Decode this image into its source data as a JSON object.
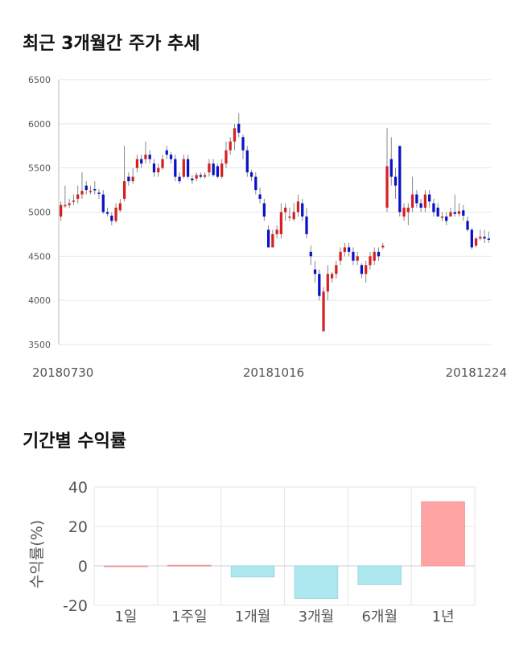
{
  "sections": {
    "price_title": "최근 3개월간 주가 추세",
    "return_title": "기간별 수익률"
  },
  "colors": {
    "up": "#d62121",
    "down": "#0a12c8",
    "grid": "#e6e6e6",
    "bar_pos": "#ffa4a4",
    "bar_neg": "#ade8f0"
  },
  "chart_data": [
    {
      "type": "candlestick",
      "title": "최근 3개월간 주가 추세",
      "ylim": [
        3500,
        6500
      ],
      "yticks": [
        3500,
        4000,
        4500,
        5000,
        5500,
        6000,
        6500
      ],
      "xtick_labels": [
        "20180730",
        "20181016",
        "20181224"
      ],
      "grid": true,
      "candles": [
        [
          4950,
          5080,
          5120,
          4900
        ],
        [
          5070,
          5080,
          5300,
          5050
        ],
        [
          5080,
          5100,
          5150,
          5050
        ],
        [
          5120,
          5130,
          5200,
          5080
        ],
        [
          5150,
          5200,
          5300,
          5100
        ],
        [
          5200,
          5240,
          5450,
          5150
        ],
        [
          5300,
          5250,
          5350,
          5200
        ],
        [
          5230,
          5240,
          5300,
          5200
        ],
        [
          5260,
          5250,
          5350,
          5200
        ],
        [
          5220,
          5210,
          5260,
          5150
        ],
        [
          5200,
          5000,
          5250,
          4980
        ],
        [
          5000,
          4980,
          5050,
          4950
        ],
        [
          4960,
          4900,
          5000,
          4850
        ],
        [
          4900,
          5050,
          5100,
          4880
        ],
        [
          5020,
          5100,
          5150,
          5000
        ],
        [
          5150,
          5350,
          5750,
          5120
        ],
        [
          5400,
          5350,
          5450,
          5300
        ],
        [
          5350,
          5400,
          5500,
          5320
        ],
        [
          5500,
          5600,
          5650,
          5450
        ],
        [
          5600,
          5550,
          5650,
          5500
        ],
        [
          5600,
          5650,
          5800,
          5550
        ],
        [
          5650,
          5600,
          5700,
          5550
        ],
        [
          5550,
          5450,
          5600,
          5400
        ],
        [
          5450,
          5500,
          5550,
          5400
        ],
        [
          5500,
          5600,
          5650,
          5480
        ],
        [
          5700,
          5650,
          5750,
          5600
        ],
        [
          5650,
          5600,
          5680,
          5550
        ],
        [
          5600,
          5400,
          5650,
          5350
        ],
        [
          5400,
          5350,
          5450,
          5320
        ],
        [
          5400,
          5600,
          5650,
          5380
        ],
        [
          5600,
          5400,
          5650,
          5380
        ],
        [
          5380,
          5360,
          5420,
          5320
        ],
        [
          5380,
          5420,
          5450,
          5350
        ],
        [
          5420,
          5400,
          5450,
          5380
        ],
        [
          5400,
          5420,
          5450,
          5380
        ],
        [
          5450,
          5550,
          5600,
          5400
        ],
        [
          5550,
          5420,
          5600,
          5400
        ],
        [
          5520,
          5400,
          5550,
          5380
        ],
        [
          5400,
          5550,
          5600,
          5380
        ],
        [
          5550,
          5700,
          5800,
          5500
        ],
        [
          5700,
          5800,
          5850,
          5650
        ],
        [
          5800,
          5950,
          6000,
          5700
        ],
        [
          6000,
          5900,
          6120,
          5850
        ],
        [
          5850,
          5700,
          5880,
          5600
        ],
        [
          5700,
          5450,
          5750,
          5400
        ],
        [
          5450,
          5400,
          5480,
          5350
        ],
        [
          5400,
          5250,
          5450,
          5200
        ],
        [
          5200,
          5150,
          5280,
          5100
        ],
        [
          5100,
          4950,
          5150,
          4900
        ],
        [
          4800,
          4600,
          4850,
          4600
        ],
        [
          4600,
          4750,
          4800,
          4600
        ],
        [
          4750,
          4800,
          4850,
          4700
        ],
        [
          4750,
          5000,
          5100,
          4700
        ],
        [
          5000,
          5050,
          5100,
          4900
        ],
        [
          4950,
          4950,
          5050,
          4900
        ],
        [
          4920,
          5000,
          5100,
          4900
        ],
        [
          5000,
          5120,
          5200,
          4950
        ],
        [
          5100,
          4950,
          5150,
          4900
        ],
        [
          4950,
          4750,
          5050,
          4700
        ],
        [
          4550,
          4500,
          4620,
          4400
        ],
        [
          4350,
          4300,
          4450,
          4200
        ],
        [
          4300,
          4050,
          4350,
          4000
        ],
        [
          3650,
          4100,
          4150,
          3650
        ],
        [
          4100,
          4300,
          4400,
          4000
        ],
        [
          4250,
          4300,
          4320,
          4200
        ],
        [
          4300,
          4400,
          4450,
          4250
        ],
        [
          4450,
          4550,
          4600,
          4400
        ],
        [
          4550,
          4600,
          4650,
          4500
        ],
        [
          4600,
          4550,
          4650,
          4500
        ],
        [
          4550,
          4450,
          4600,
          4400
        ],
        [
          4450,
          4500,
          4550,
          4400
        ],
        [
          4400,
          4300,
          4420,
          4250
        ],
        [
          4300,
          4400,
          4450,
          4200
        ],
        [
          4400,
          4500,
          4550,
          4350
        ],
        [
          4450,
          4550,
          4600,
          4400
        ],
        [
          4550,
          4500,
          4600,
          4450
        ],
        [
          4600,
          4620,
          4650,
          4580
        ],
        [
          5050,
          5520,
          5950,
          5000
        ],
        [
          5600,
          5400,
          5850,
          5300
        ],
        [
          5400,
          5300,
          5500,
          5150
        ],
        [
          5750,
          5000,
          5750,
          4950
        ],
        [
          4950,
          5050,
          5100,
          4900
        ],
        [
          5000,
          5050,
          5100,
          4850
        ],
        [
          5050,
          5200,
          5400,
          5000
        ],
        [
          5200,
          5100,
          5250,
          5050
        ],
        [
          5100,
          5050,
          5150,
          5000
        ],
        [
          5050,
          5200,
          5250,
          5000
        ],
        [
          5200,
          5120,
          5250,
          5050
        ],
        [
          5100,
          5000,
          5150,
          4950
        ],
        [
          5050,
          4950,
          5100,
          4950
        ],
        [
          4950,
          4950,
          5000,
          4900
        ],
        [
          4950,
          4900,
          5000,
          4850
        ],
        [
          4950,
          5000,
          5050,
          4950
        ],
        [
          5000,
          4980,
          5200,
          4950
        ],
        [
          4980,
          5010,
          5100,
          4950
        ],
        [
          5020,
          4960,
          5080,
          4900
        ],
        [
          4900,
          4800,
          4950,
          4780
        ],
        [
          4800,
          4600,
          4820,
          4580
        ],
        [
          4620,
          4700,
          4720,
          4600
        ],
        [
          4700,
          4720,
          4800,
          4680
        ],
        [
          4720,
          4700,
          4800,
          4650
        ],
        [
          4700,
          4690,
          4780,
          4650
        ]
      ]
    },
    {
      "type": "bar",
      "categories": [
        "1일",
        "1주일",
        "1개월",
        "3개월",
        "6개월",
        "1년"
      ],
      "values": [
        0.0,
        0.3,
        -5.6,
        -16.5,
        -9.5,
        32.5
      ],
      "ylabel": "수익률(%)",
      "ylim": [
        -20,
        40
      ],
      "yticks": [
        40,
        20,
        0,
        -20
      ],
      "grid": true
    }
  ]
}
